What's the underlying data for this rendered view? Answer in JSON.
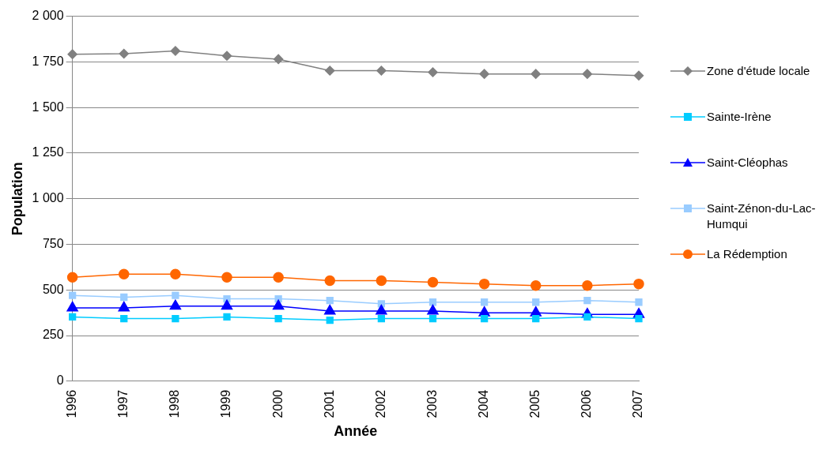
{
  "chart_data": {
    "type": "line",
    "xlabel": "Année",
    "ylabel": "Population",
    "categories": [
      "1996",
      "1997",
      "1998",
      "1999",
      "2000",
      "2001",
      "2002",
      "2003",
      "2004",
      "2005",
      "2006",
      "2007"
    ],
    "series": [
      {
        "name": "Zone d'étude locale",
        "color": "#808080",
        "marker": "diamond",
        "values": [
          1792,
          1795,
          1810,
          1783,
          1765,
          1702,
          1702,
          1693,
          1684,
          1684,
          1684,
          1675
        ]
      },
      {
        "name": "Sainte-Irène",
        "color": "#00ccff",
        "marker": "square",
        "values": [
          352,
          343,
          343,
          352,
          343,
          334,
          343,
          343,
          343,
          343,
          352,
          343
        ]
      },
      {
        "name": "Saint-Cléophas",
        "color": "#0000ff",
        "marker": "triangle",
        "values": [
          402,
          402,
          411,
          411,
          411,
          384,
          384,
          384,
          375,
          375,
          366,
          366
        ]
      },
      {
        "name": "Saint-Zénon-du-Lac-Humqui",
        "color": "#99ccff",
        "marker": "square",
        "values": [
          470,
          460,
          470,
          451,
          451,
          442,
          424,
          433,
          433,
          433,
          442,
          433
        ]
      },
      {
        "name": "La Rédemption",
        "color": "#ff6600",
        "marker": "circle",
        "values": [
          569,
          587,
          587,
          569,
          569,
          551,
          551,
          542,
          533,
          524,
          524,
          533
        ]
      }
    ],
    "ylim": [
      0,
      2000
    ],
    "yticks": [
      0,
      250,
      500,
      750,
      {
        "value": 1000,
        "label": "1 000"
      },
      {
        "value": 1250,
        "label": "1 250"
      },
      {
        "value": 1500,
        "label": "1 500"
      },
      {
        "value": 1750,
        "label": "1 750"
      },
      {
        "value": 2000,
        "label": "2 000"
      }
    ],
    "grid": "y",
    "legend": "right",
    "line_style": "solid"
  }
}
